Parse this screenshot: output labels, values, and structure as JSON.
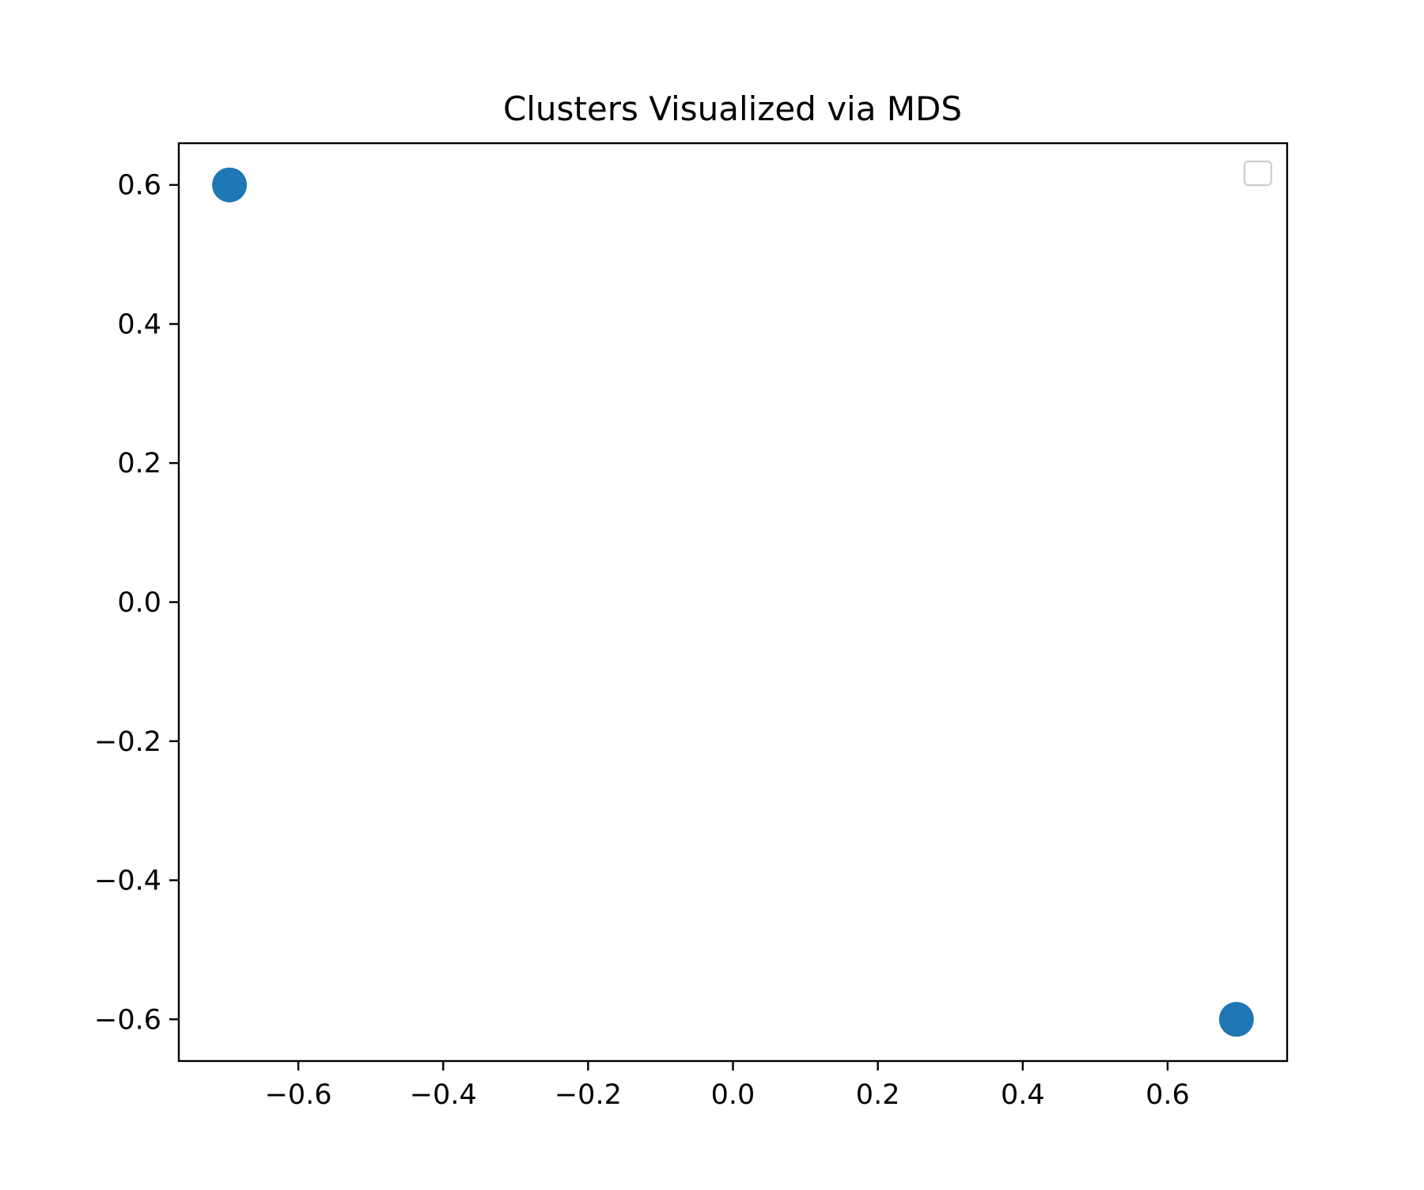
{
  "chart_data": {
    "type": "scatter",
    "title": "Clusters Visualized via MDS",
    "xlabel": "",
    "ylabel": "",
    "xlim": [
      -0.765,
      0.765
    ],
    "ylim": [
      -0.66,
      0.66
    ],
    "xticks": [
      -0.6,
      -0.4,
      -0.2,
      0.0,
      0.2,
      0.4,
      0.6
    ],
    "yticks": [
      -0.6,
      -0.4,
      -0.2,
      0.0,
      0.2,
      0.4,
      0.6
    ],
    "xtick_labels": [
      "−0.6",
      "−0.4",
      "−0.2",
      "0.0",
      "0.2",
      "0.4",
      "0.6"
    ],
    "ytick_labels": [
      "−0.6",
      "−0.4",
      "−0.2",
      "0.0",
      "0.2",
      "0.4",
      "0.6"
    ],
    "grid": false,
    "legend": {
      "placement": "top-right",
      "entries": []
    },
    "series": [
      {
        "color": "#1f77b4",
        "points": [
          {
            "x": -0.695,
            "y": 0.6
          },
          {
            "x": 0.695,
            "y": -0.6
          }
        ]
      }
    ]
  }
}
